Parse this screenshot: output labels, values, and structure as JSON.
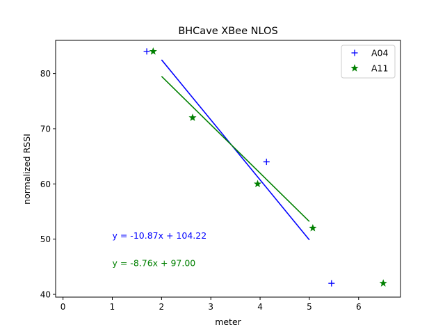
{
  "chart_data": {
    "type": "scatter",
    "title": "BHCave XBee NLOS",
    "xlabel": "meter",
    "ylabel": "normalized RSSI",
    "xlim": [
      -0.15,
      6.85
    ],
    "ylim": [
      39.5,
      86.0
    ],
    "x_ticks": [
      0,
      1,
      2,
      3,
      4,
      5,
      6
    ],
    "y_ticks": [
      40,
      50,
      60,
      70,
      80
    ],
    "grid": false,
    "legend_position": "top-right",
    "series": [
      {
        "name": "A04",
        "marker": "plus",
        "color": "#0000ff",
        "points": [
          {
            "x": 1.7,
            "y": 84
          },
          {
            "x": 4.13,
            "y": 64
          },
          {
            "x": 5.45,
            "y": 42
          }
        ]
      },
      {
        "name": "A11",
        "marker": "star",
        "color": "#008000",
        "points": [
          {
            "x": 1.83,
            "y": 84
          },
          {
            "x": 2.63,
            "y": 72
          },
          {
            "x": 3.95,
            "y": 60
          },
          {
            "x": 5.07,
            "y": 52
          },
          {
            "x": 6.5,
            "y": 42
          }
        ]
      }
    ],
    "fit_lines": [
      {
        "series": "A04",
        "color": "#0000ff",
        "slope": -10.87,
        "intercept": 104.22,
        "x_range": [
          2,
          5
        ],
        "equation": "y = -10.87x + 104.22"
      },
      {
        "series": "A11",
        "color": "#008000",
        "slope": -8.76,
        "intercept": 97.0,
        "x_range": [
          2,
          5
        ],
        "equation": "y = -8.76x + 97.00"
      }
    ]
  }
}
